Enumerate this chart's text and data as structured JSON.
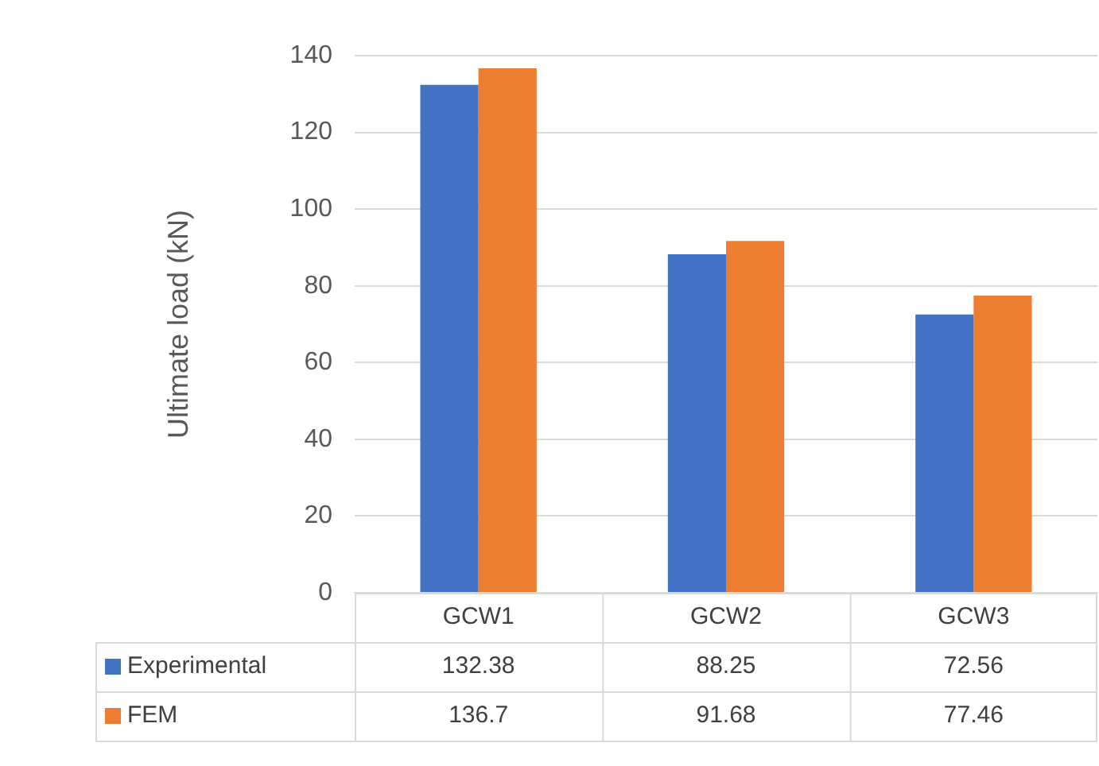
{
  "chart_data": {
    "type": "bar",
    "ylabel": "Ultimate load (kN)",
    "categories": [
      "GCW1",
      "GCW2",
      "GCW3"
    ],
    "series": [
      {
        "name": "Experimental",
        "color": "#4472c4",
        "values": [
          132.38,
          88.25,
          72.56
        ]
      },
      {
        "name": "FEM",
        "color": "#ed7d31",
        "values": [
          136.7,
          91.68,
          77.46
        ]
      }
    ],
    "ylim": [
      0,
      140
    ],
    "yticks": [
      0,
      20,
      40,
      60,
      80,
      100,
      120,
      140
    ],
    "grid": "y",
    "legend": "bottom",
    "data_labels": true
  }
}
